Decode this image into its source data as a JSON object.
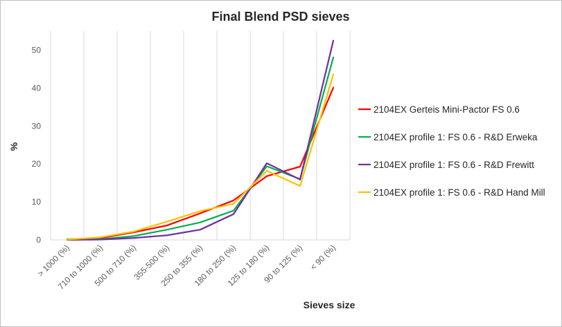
{
  "chart_data": {
    "type": "line",
    "title": "Final Blend PSD sieves",
    "xlabel": "Sieves size",
    "ylabel": "%",
    "ylim": [
      0,
      55
    ],
    "yticks": [
      0,
      10,
      20,
      30,
      40,
      50
    ],
    "grid": "vertical",
    "legend_position": "right",
    "categories": [
      "> 1000 (%)",
      "710 to 1000 (%)",
      "500 to 710 (%)",
      "355-500 (%)",
      "250 to 355 (%)",
      "180 to 250 (%)",
      "125 to 180 (%)",
      "90 to 125 (%)",
      "< 90 (%)"
    ],
    "series": [
      {
        "name": "2104EX Gerteis Mini-Pactor FS 0.6",
        "color": "#ff0000",
        "values": [
          0.1,
          0.5,
          2.0,
          3.8,
          7.0,
          10.4,
          16.8,
          19.3,
          40.1
        ]
      },
      {
        "name": "2104EX profile 1: FS 0.6 - R&D Erweka",
        "color": "#00b050",
        "values": [
          0.2,
          0.2,
          1.0,
          2.7,
          4.6,
          7.7,
          19.4,
          16.0,
          48.1
        ]
      },
      {
        "name": "2104EX profile 1: FS 0.6 - R&D Frewitt",
        "color": "#7030a0",
        "values": [
          0.0,
          0.1,
          0.5,
          1.2,
          2.7,
          6.8,
          20.2,
          15.9,
          52.5
        ]
      },
      {
        "name": "2104EX profile 1: FS 0.6 - R&D Hand Mill",
        "color": "#ffc000",
        "values": [
          0.1,
          0.7,
          2.2,
          4.8,
          7.6,
          9.5,
          18.2,
          14.2,
          43.6
        ]
      }
    ]
  }
}
